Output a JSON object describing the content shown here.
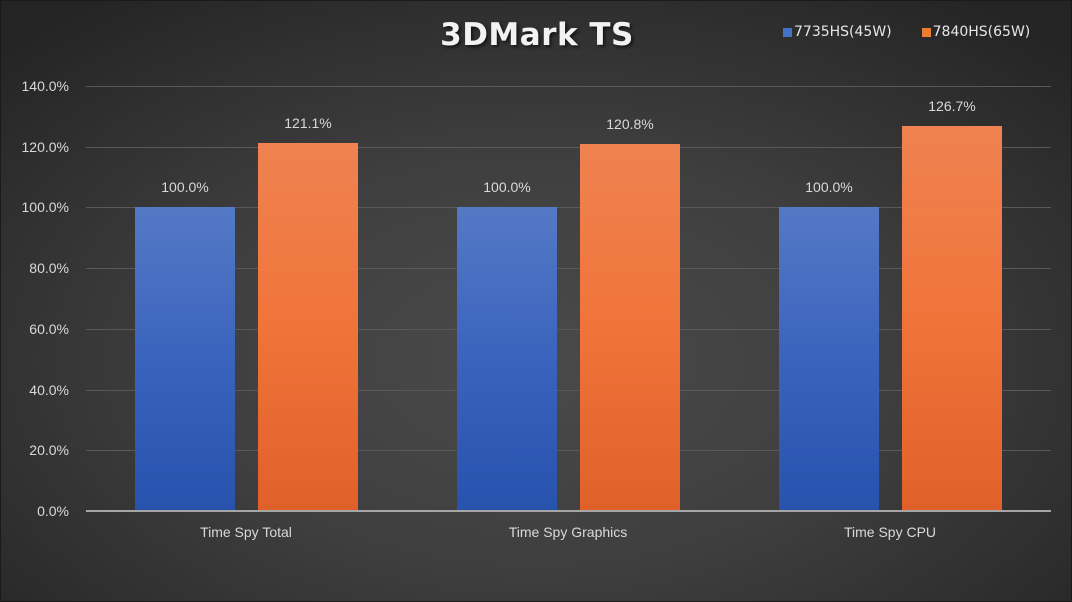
{
  "chart_data": {
    "type": "bar",
    "title": "3DMark TS",
    "categories": [
      "Time Spy Total",
      "Time Spy Graphics",
      "Time Spy CPU"
    ],
    "series": [
      {
        "name": "7735HS(45W)",
        "color": "#4472c4",
        "values": [
          100.0,
          100.0,
          100.0
        ],
        "labels": [
          "100.0%",
          "100.0%",
          "100.0%"
        ]
      },
      {
        "name": "7840HS(65W)",
        "color": "#ed7d31",
        "values": [
          121.1,
          120.8,
          126.7
        ],
        "labels": [
          "121.1%",
          "120.8%",
          "126.7%"
        ]
      }
    ],
    "xlabel": "",
    "ylabel": "",
    "ylim": [
      0,
      140
    ],
    "yticks": [
      "0.0%",
      "20.0%",
      "40.0%",
      "60.0%",
      "80.0%",
      "100.0%",
      "120.0%",
      "140.0%"
    ],
    "grid": true,
    "legend_position": "top-right"
  },
  "colors": {
    "series0": "#4472c4",
    "series1": "#ed7d31",
    "background": "#404040",
    "text": "#d9d9d9"
  }
}
